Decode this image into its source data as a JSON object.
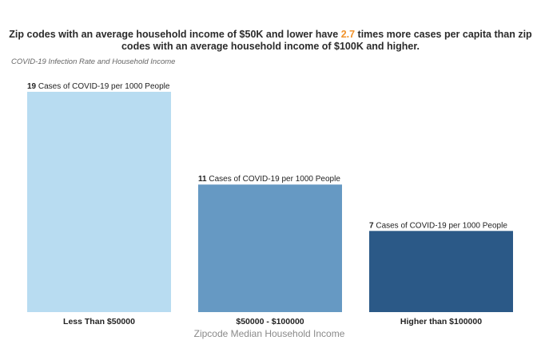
{
  "title": {
    "part1": "Zip codes with an  average household income of $50K and lower have ",
    "highlight": "2.7",
    "part2": " times more cases per capita than zip codes with an average household income of $100K and higher."
  },
  "subtitle": "COVID-19 Infection Rate and Household Income",
  "colors": {
    "highlight": "#f0922b"
  },
  "chart_data": {
    "type": "bar",
    "categories": [
      "Less Than $50000",
      "$50000 - $100000",
      "Higher than $100000"
    ],
    "values": [
      19,
      11,
      7
    ],
    "value_suffix": "Cases of COVID-19  per 1000 People",
    "colors": [
      "#b8dcf1",
      "#6699c3",
      "#2b5987"
    ],
    "xlabel": "Zipcode Median Household Income",
    "ylabel": "",
    "ylim": [
      0,
      19
    ],
    "grid": false
  }
}
